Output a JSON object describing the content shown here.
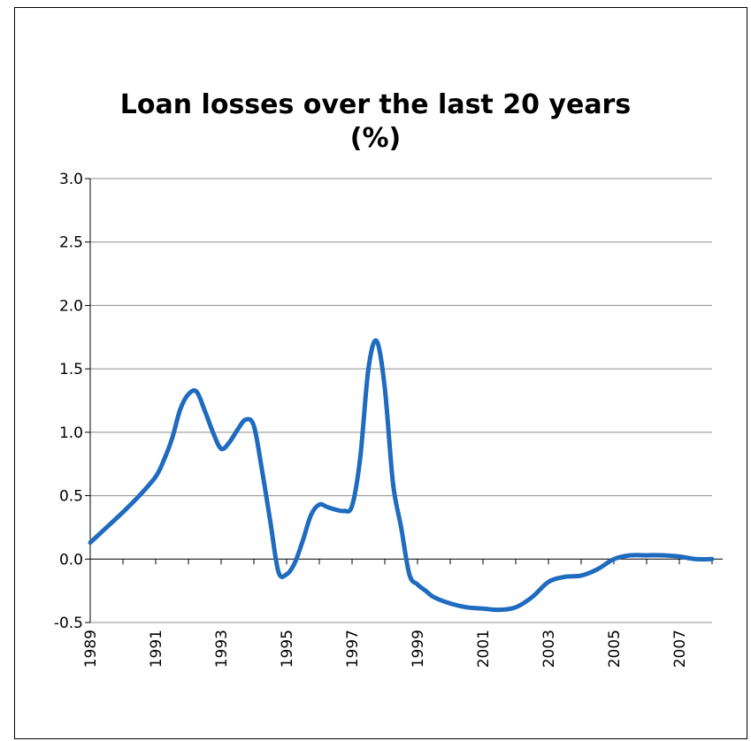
{
  "chart_data": {
    "type": "line",
    "title_line1": "Loan losses over the last 20 years",
    "title_line2": "(%)",
    "xlabel": "",
    "ylabel": "",
    "ylim": [
      -0.5,
      3.0
    ],
    "yticks": [
      -0.5,
      0.0,
      0.5,
      1.0,
      1.5,
      2.0,
      2.5,
      3.0
    ],
    "ytick_labels": [
      "-0.5",
      "0.0",
      "0.5",
      "1.0",
      "1.5",
      "2.0",
      "2.5",
      "3.0"
    ],
    "xlim": [
      1989,
      2008
    ],
    "xtick_labels": [
      "1989",
      "1991",
      "1993",
      "1995",
      "1997",
      "1999",
      "2001",
      "2003",
      "2005",
      "2007"
    ],
    "grid": true,
    "legend": false,
    "color": "#1f6bbf",
    "series": [
      {
        "x": [
          1989.0,
          1989.5,
          1990.0,
          1990.5,
          1991.0,
          1991.25,
          1991.5,
          1991.75,
          1992.0,
          1992.25,
          1992.5,
          1992.75,
          1993.0,
          1993.25,
          1993.5,
          1993.75,
          1994.0,
          1994.25,
          1994.5,
          1994.75,
          1995.0,
          1995.25,
          1995.5,
          1995.75,
          1996.0,
          1996.25,
          1996.5,
          1996.75,
          1997.0,
          1997.25,
          1997.5,
          1997.75,
          1998.0,
          1998.25,
          1998.5,
          1998.75,
          1999.0,
          1999.25,
          1999.5,
          2000.0,
          2000.5,
          2001.0,
          2001.5,
          2002.0,
          2002.5,
          2003.0,
          2003.5,
          2004.0,
          2004.5,
          2005.0,
          2005.5,
          2006.0,
          2006.5,
          2007.0,
          2007.5,
          2008.0
        ],
        "values": [
          0.13,
          0.25,
          0.37,
          0.5,
          0.65,
          0.78,
          0.95,
          1.18,
          1.3,
          1.32,
          1.17,
          1.0,
          0.87,
          0.92,
          1.02,
          1.1,
          1.05,
          0.7,
          0.3,
          -0.1,
          -0.12,
          -0.03,
          0.15,
          0.35,
          0.43,
          0.41,
          0.39,
          0.38,
          0.42,
          0.8,
          1.5,
          1.72,
          1.35,
          0.6,
          0.25,
          -0.12,
          -0.2,
          -0.25,
          -0.3,
          -0.35,
          -0.38,
          -0.39,
          -0.4,
          -0.38,
          -0.3,
          -0.18,
          -0.14,
          -0.13,
          -0.08,
          0.0,
          0.03,
          0.03,
          0.03,
          0.02,
          0.0,
          0.0
        ]
      }
    ]
  }
}
